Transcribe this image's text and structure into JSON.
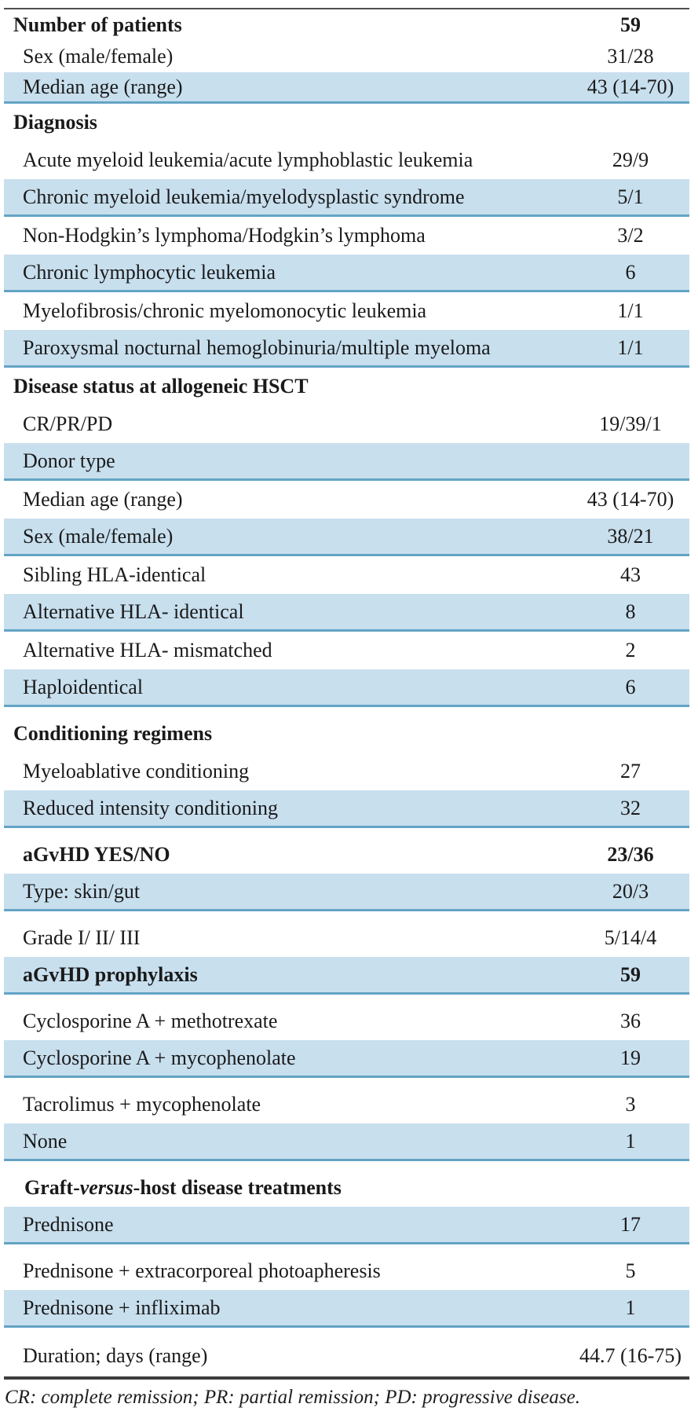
{
  "table": {
    "colors": {
      "row_shade": "#c8dfee",
      "row_border": "#63a4c4",
      "top_rule": "#4f4f4f",
      "bottom_rule": "#3d3d3d",
      "text": "#1a1a1a"
    },
    "rows": [
      {
        "label": "Number of patients",
        "value": "59",
        "kind": "section",
        "size": "sm"
      },
      {
        "label": "Sex (male/female)",
        "value": "31/28",
        "kind": "item",
        "size": "sm"
      },
      {
        "label": "Median age (range)",
        "value": "43 (14-70)",
        "kind": "item",
        "size": "sm",
        "shaded": true
      },
      {
        "label": "Diagnosis",
        "kind": "section"
      },
      {
        "label": "Acute myeloid leukemia/acute lymphoblastic leukemia",
        "value": "29/9",
        "kind": "item"
      },
      {
        "label": "Chronic myeloid leukemia/myelodysplastic syndrome",
        "value": "5/1",
        "kind": "item",
        "shaded": true
      },
      {
        "label": "Non-Hodgkin’s lymphoma/Hodgkin’s lymphoma",
        "value": "3/2",
        "kind": "item"
      },
      {
        "label": "Chronic lymphocytic leukemia",
        "value": "6",
        "kind": "item",
        "shaded": true
      },
      {
        "label": "Myelofibrosis/chronic myelomonocytic leukemia",
        "value": "1/1",
        "kind": "item"
      },
      {
        "label": "Paroxysmal nocturnal hemoglobinuria/multiple myeloma",
        "value": "1/1",
        "kind": "item",
        "shaded": true
      },
      {
        "label": "Disease status at allogeneic HSCT",
        "kind": "section"
      },
      {
        "label": "CR/PR/PD",
        "value": "19/39/1",
        "kind": "item"
      },
      {
        "label": "Donor type",
        "kind": "item",
        "shaded": true
      },
      {
        "label": "Median age (range)",
        "value": "43 (14-70)",
        "kind": "item"
      },
      {
        "label": "Sex (male/female)",
        "value": "38/21",
        "kind": "item",
        "shaded": true
      },
      {
        "label": "Sibling HLA-identical",
        "value": "43",
        "kind": "item"
      },
      {
        "label": "Alternative HLA- identical",
        "value": "8",
        "kind": "item",
        "shaded": true
      },
      {
        "label": "Alternative HLA- mismatched",
        "value": "2",
        "kind": "item"
      },
      {
        "label": "Haploidentical",
        "value": "6",
        "kind": "item",
        "shaded": true
      },
      {
        "label": "Conditioning regimens",
        "kind": "section",
        "gap": true
      },
      {
        "label": "Myeloablative conditioning",
        "value": "27",
        "kind": "item"
      },
      {
        "label": "Reduced intensity conditioning",
        "value": "32",
        "kind": "item",
        "shaded": true
      },
      {
        "label": "aGvHD YES/NO",
        "value": "23/36",
        "kind": "item",
        "bold": true,
        "gap": true
      },
      {
        "label": "Type: skin/gut",
        "value": "20/3",
        "kind": "item",
        "shaded": true
      },
      {
        "label": "Grade I/ II/ III",
        "value": "5/14/4",
        "kind": "item",
        "gap": true
      },
      {
        "label": "aGvHD prophylaxis",
        "value": "59",
        "kind": "item",
        "bold": true,
        "shaded": true
      },
      {
        "label": "Cyclosporine A + methotrexate",
        "value": "36",
        "kind": "item",
        "gap": true
      },
      {
        "label": "Cyclosporine A + mycophenolate",
        "value": "19",
        "kind": "item",
        "shaded": true
      },
      {
        "label": "Tacrolimus + mycophenolate",
        "value": "3",
        "kind": "item",
        "gap": true
      },
      {
        "label": "None",
        "value": "1",
        "kind": "item",
        "shaded": true
      },
      {
        "label": "Graft-versus-host disease treatments",
        "kind": "section",
        "indented": true,
        "italic_segment": "versus",
        "gap": true
      },
      {
        "label": "Prednisone",
        "value": "17",
        "kind": "item",
        "shaded": true
      },
      {
        "label": "Prednisone + extracorporeal photoapheresis",
        "value": "5",
        "kind": "item",
        "gap": true
      },
      {
        "label": "Prednisone + infliximab",
        "value": "1",
        "kind": "item",
        "shaded": true
      },
      {
        "label": "Duration; days (range)",
        "value": "44.7 (16-75)",
        "kind": "item",
        "gap": true
      }
    ],
    "footnote": "CR: complete remission; PR: partial remission; PD: progressive disease."
  }
}
